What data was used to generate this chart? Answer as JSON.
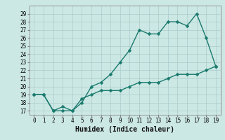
{
  "xlabel": "Humidex (Indice chaleur)",
  "x": [
    0,
    1,
    2,
    3,
    4,
    5,
    6,
    7,
    8,
    9,
    10,
    11,
    12,
    13,
    14,
    15,
    16,
    17,
    18,
    19
  ],
  "y_main": [
    19.0,
    19.0,
    17.0,
    17.0,
    17.0,
    18.0,
    20.0,
    20.5,
    21.5,
    23.0,
    24.5,
    27.0,
    26.5,
    26.5,
    28.0,
    28.0,
    27.5,
    29.0,
    26.0,
    22.5
  ],
  "y_ref": [
    19.0,
    19.0,
    17.0,
    17.5,
    17.0,
    18.5,
    19.0,
    19.5,
    19.5,
    19.5,
    20.0,
    20.5,
    20.5,
    20.5,
    21.0,
    21.5,
    21.5,
    21.5,
    22.0,
    22.5
  ],
  "line_color": "#1a7a6e",
  "bg_color": "#cce8e4",
  "grid_color": "#aacccc",
  "xlim": [
    -0.5,
    19.5
  ],
  "ylim": [
    16.5,
    30.0
  ],
  "yticks": [
    17,
    18,
    19,
    20,
    21,
    22,
    23,
    24,
    25,
    26,
    27,
    28,
    29
  ],
  "xticks": [
    0,
    1,
    2,
    3,
    4,
    5,
    6,
    7,
    8,
    9,
    10,
    11,
    12,
    13,
    14,
    15,
    16,
    17,
    18,
    19
  ],
  "markersize": 2.5,
  "linewidth": 1.0,
  "tick_fontsize": 5.5,
  "xlabel_fontsize": 7.0
}
